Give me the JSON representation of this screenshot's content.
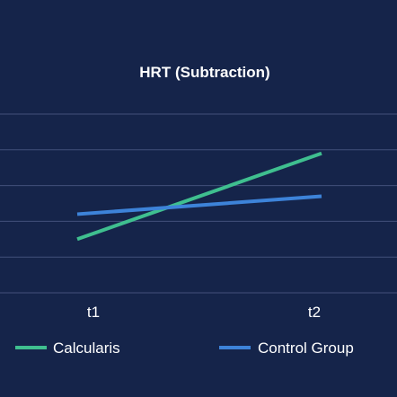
{
  "colors": {
    "background": "#15244a",
    "grid": "#42507a",
    "calcularis": "#3fbf8f",
    "control_group": "#3d83d9",
    "text": "#ffffff"
  },
  "chart_data": {
    "type": "line",
    "title": "HRT (Subtraction)",
    "xlabel": "",
    "ylabel": "",
    "categories": [
      "t1",
      "t2"
    ],
    "ylim": [
      0,
      5
    ],
    "grid": "horizontal",
    "y_axis_labels_shown": false,
    "legend_position": "bottom",
    "series": [
      {
        "name": "Calcularis",
        "values": [
          1.5,
          3.9
        ],
        "color": "#3fbf8f"
      },
      {
        "name": "Control Group",
        "values": [
          2.2,
          2.7
        ],
        "color": "#3d83d9"
      }
    ]
  }
}
